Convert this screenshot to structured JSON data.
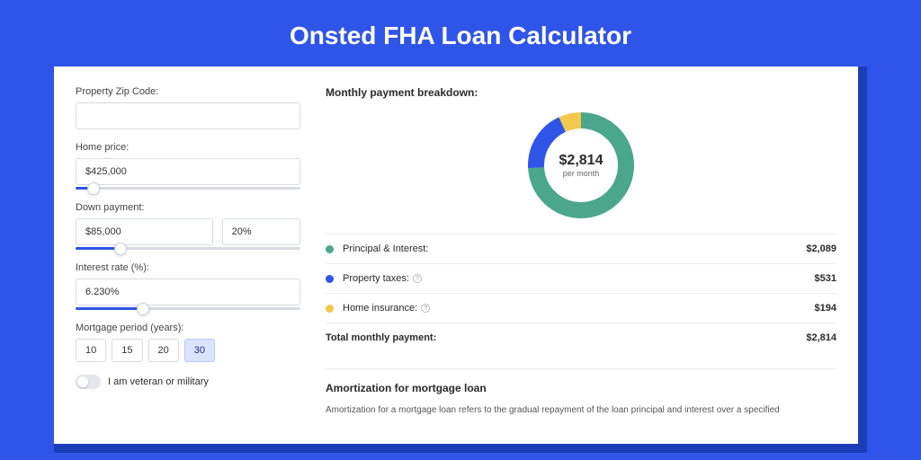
{
  "title": "Onsted FHA Loan Calculator",
  "form": {
    "zip": {
      "label": "Property Zip Code:",
      "value": ""
    },
    "home_price": {
      "label": "Home price:",
      "value": "$425,000",
      "slider_pct": 8
    },
    "down_payment": {
      "label": "Down payment:",
      "value": "$85,000",
      "pct_value": "20%",
      "slider_pct": 20
    },
    "interest": {
      "label": "Interest rate (%):",
      "value": "6.230%",
      "slider_pct": 30
    },
    "period": {
      "label": "Mortgage period (years):",
      "options": [
        "10",
        "15",
        "20",
        "30"
      ],
      "active_index": 3
    },
    "veteran": {
      "label": "I am veteran or military",
      "checked": false
    }
  },
  "breakdown": {
    "title": "Monthly payment breakdown:",
    "center_value": "$2,814",
    "center_sub": "per month",
    "donut": {
      "slices": [
        {
          "key": "pi",
          "pct": 74,
          "color": "#4aa78b"
        },
        {
          "key": "tax",
          "pct": 19,
          "color": "#2f55e8"
        },
        {
          "key": "ins",
          "pct": 7,
          "color": "#f2c94c"
        }
      ],
      "stroke_width": 18,
      "radius": 50
    },
    "rows": [
      {
        "dot": "#4aa78b",
        "label": "Principal & Interest:",
        "info": false,
        "value": "$2,089"
      },
      {
        "dot": "#2f55e8",
        "label": "Property taxes:",
        "info": true,
        "value": "$531"
      },
      {
        "dot": "#f2c94c",
        "label": "Home insurance:",
        "info": true,
        "value": "$194"
      }
    ],
    "total": {
      "label": "Total monthly payment:",
      "value": "$2,814"
    }
  },
  "amortization": {
    "title": "Amortization for mortgage loan",
    "text": "Amortization for a mortgage loan refers to the gradual repayment of the loan principal and interest over a specified"
  },
  "colors": {
    "brand": "#2f55e8",
    "bg_shadow": "#1c3db8"
  }
}
